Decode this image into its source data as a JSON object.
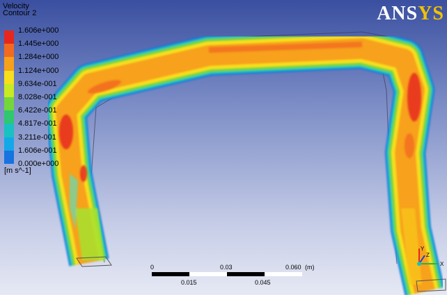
{
  "legend": {
    "title": "Velocity",
    "subtitle": "Contour 2",
    "levels": [
      "1.606e+000",
      "1.445e+000",
      "1.284e+000",
      "1.124e+000",
      "9.634e-001",
      "8.028e-001",
      "6.422e-001",
      "4.817e-001",
      "3.211e-001",
      "1.606e-001",
      "0.000e+000"
    ],
    "colors": [
      "#e6281c",
      "#f26a1f",
      "#f7a11b",
      "#f7df1c",
      "#c7ea22",
      "#74d63a",
      "#2fc770",
      "#19c1c0",
      "#14a8e8",
      "#1673e0",
      "#1e3fd0"
    ],
    "units": "[m s^-1]"
  },
  "logo": {
    "part1": "ANS",
    "part2": "YS"
  },
  "scale_bar": {
    "top_labels": [
      "0",
      "0.03",
      "0.060"
    ],
    "unit": "(m)",
    "bottom_labels": [
      "0.015",
      "0.045"
    ]
  },
  "axes": {
    "x": "X",
    "y": "Y",
    "z": "Z"
  }
}
